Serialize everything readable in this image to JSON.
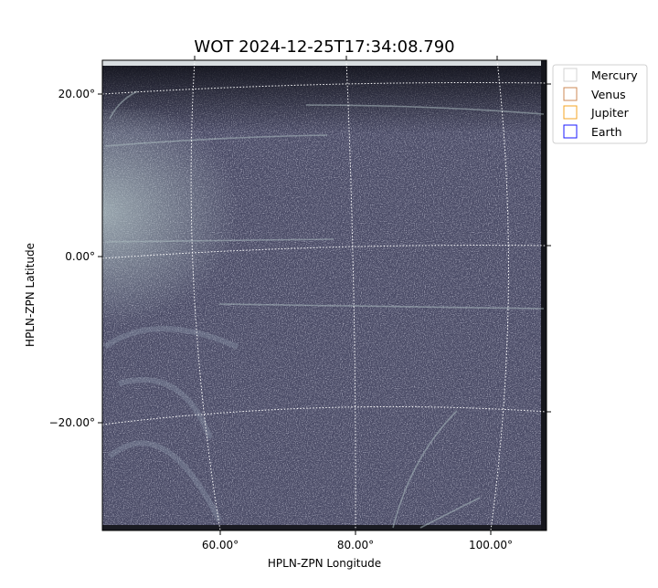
{
  "chart_data": {
    "type": "image",
    "title": "WOT 2024-12-25T17:34:08.790",
    "xlabel": "HPLN-ZPN Longitude",
    "ylabel": "HPLN-ZPN Latitude",
    "xticks": [
      "60.00°",
      "80.00°",
      "100.00°"
    ],
    "yticks": [
      "20.00°",
      "0.00°",
      "−20.00°"
    ],
    "grid": true,
    "colormap": "bone-like dark blue-gray",
    "legend": {
      "placement": "outside-top-right",
      "entries": [
        {
          "label": "Mercury",
          "color": "#d3d3d3"
        },
        {
          "label": "Venus",
          "color": "#cd8a55"
        },
        {
          "label": "Jupiter",
          "color": "#f5a623"
        },
        {
          "label": "Earth",
          "color": "#1a1aff"
        }
      ]
    }
  }
}
